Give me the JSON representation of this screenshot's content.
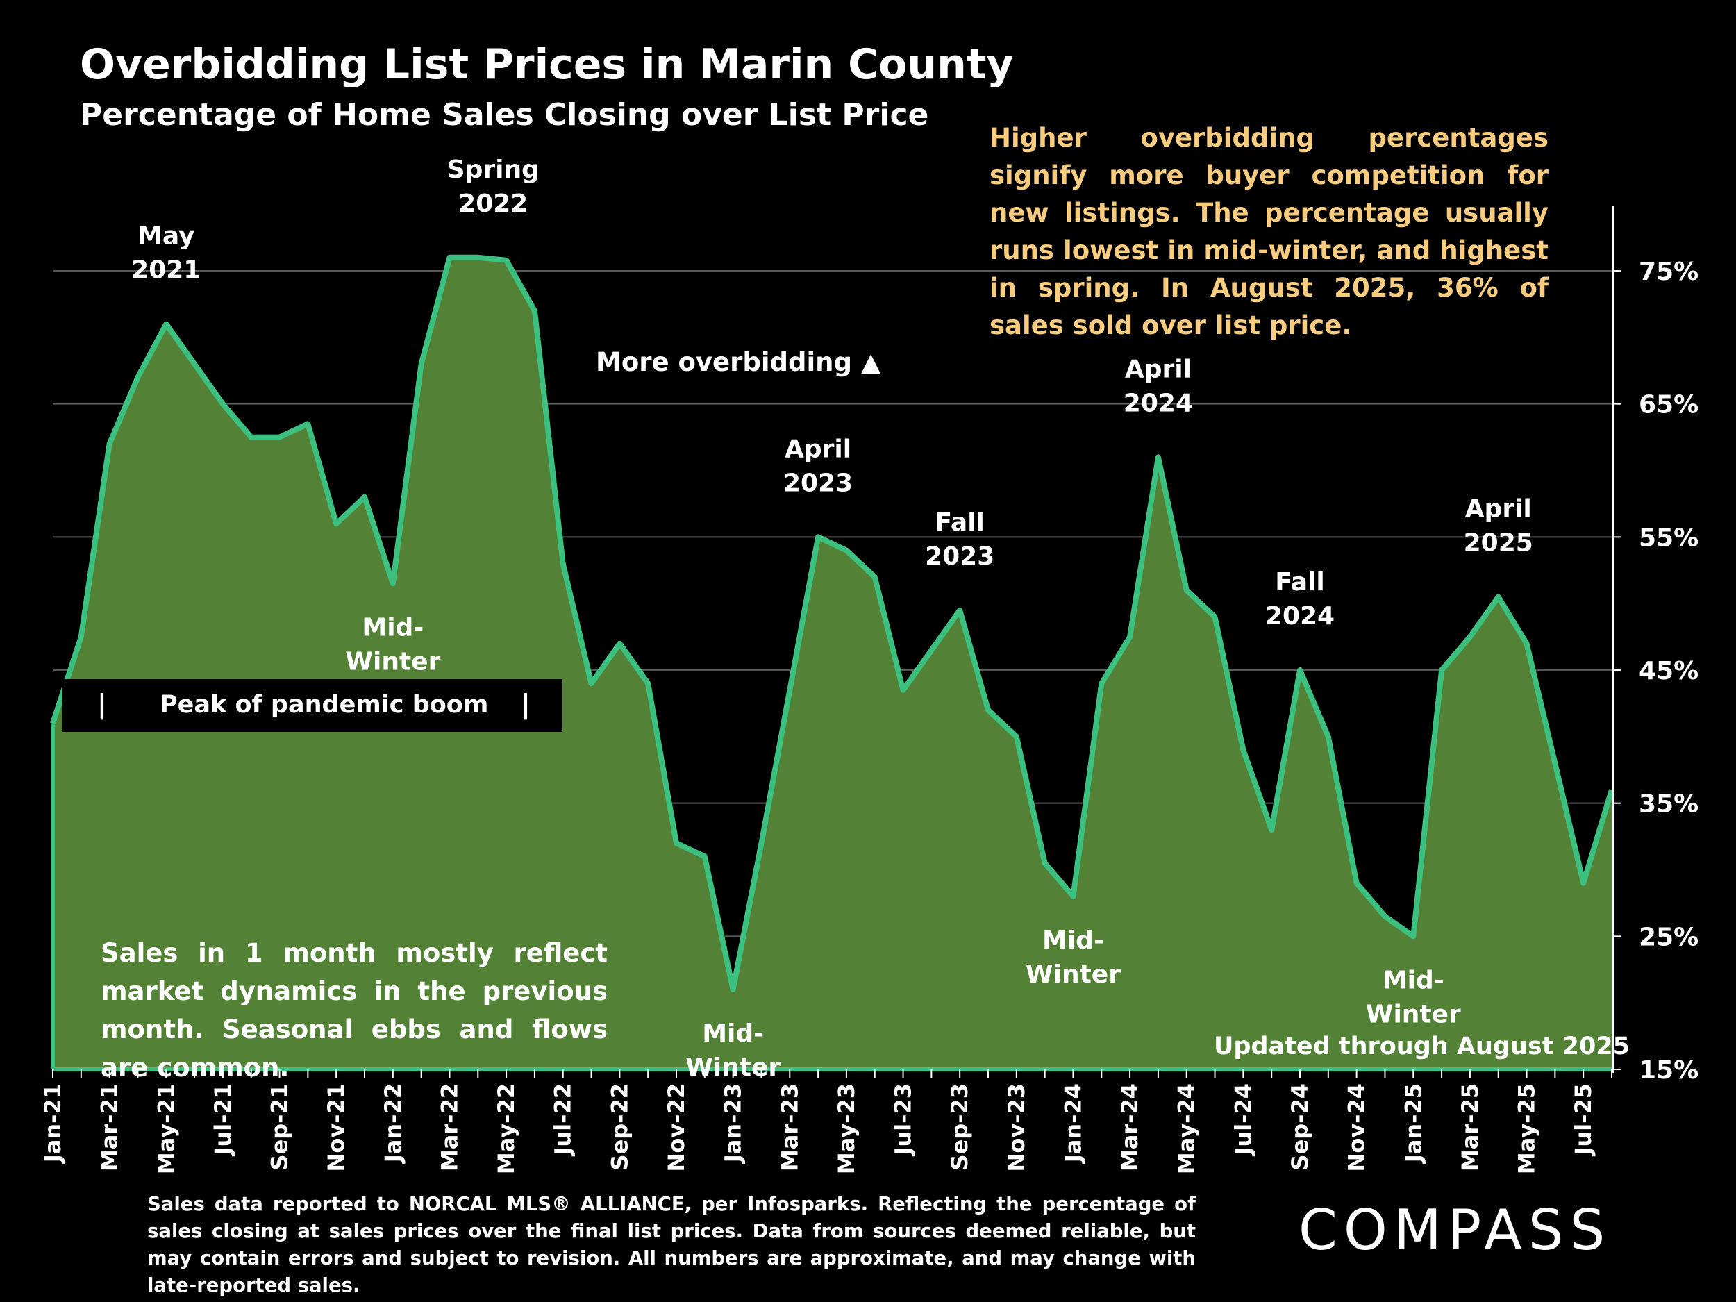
{
  "title": "Overbidding List Prices in Marin County",
  "subtitle": "Percentage of Home Sales Closing over List Price",
  "note_right": "Higher overbidding percentages signify more buyer competition for new listings. The percentage usually runs lowest in mid-winter, and highest in spring. In August 2025, 36% of sales sold over list price.",
  "note_left": "Sales in 1 month mostly reflect market dynamics in the previous month. Seasonal ebbs and flows are common.",
  "more_overbidding": "More overbidding ▲",
  "updated": "Updated through August 2025",
  "peak_label": "Peak of pandemic boom",
  "peak_bar": "|",
  "footer": "Sales data reported to NORCAL MLS® ALLIANCE, per Infosparks. Reflecting the percentage of sales closing at sales prices over the final list prices. Data from sources deemed reliable, but may contain errors and subject to revision. All numbers are approximate, and may change with late-reported sales.",
  "logo": "COMPASS",
  "colors": {
    "line": "#3cc07f",
    "fill": "#538135",
    "grid": "#595959",
    "note": "#f7cc7f"
  },
  "chart_data": {
    "type": "area",
    "ylim": [
      15,
      80
    ],
    "yticks": [
      15,
      25,
      35,
      45,
      55,
      65,
      75
    ],
    "ytick_labels": [
      "15%",
      "25%",
      "35%",
      "45%",
      "55%",
      "65%",
      "75%"
    ],
    "grid": true,
    "y_axis_position": "right",
    "x": [
      "Jan-21",
      "Feb-21",
      "Mar-21",
      "Apr-21",
      "May-21",
      "Jun-21",
      "Jul-21",
      "Aug-21",
      "Sep-21",
      "Oct-21",
      "Nov-21",
      "Dec-21",
      "Jan-22",
      "Feb-22",
      "Mar-22",
      "Apr-22",
      "May-22",
      "Jun-22",
      "Jul-22",
      "Aug-22",
      "Sep-22",
      "Oct-22",
      "Nov-22",
      "Dec-22",
      "Jan-23",
      "Feb-23",
      "Mar-23",
      "Apr-23",
      "May-23",
      "Jun-23",
      "Jul-23",
      "Aug-23",
      "Sep-23",
      "Oct-23",
      "Nov-23",
      "Dec-23",
      "Jan-24",
      "Feb-24",
      "Mar-24",
      "Apr-24",
      "May-24",
      "Jun-24",
      "Jul-24",
      "Aug-24",
      "Sep-24",
      "Oct-24",
      "Nov-24",
      "Dec-24",
      "Jan-25",
      "Feb-25",
      "Mar-25",
      "Apr-25",
      "May-25",
      "Jun-25",
      "Jul-25",
      "Aug-25"
    ],
    "xtick_labels": [
      "Jan-21",
      "Mar-21",
      "May-21",
      "Jul-21",
      "Sep-21",
      "Nov-21",
      "Jan-22",
      "Mar-22",
      "May-22",
      "Jul-22",
      "Sep-22",
      "Nov-22",
      "Jan-23",
      "Mar-23",
      "May-23",
      "Jul-23",
      "Sep-23",
      "Nov-23",
      "Jan-24",
      "Mar-24",
      "May-24",
      "Jul-24",
      "Sep-24",
      "Nov-24",
      "Jan-25",
      "Mar-25",
      "May-25",
      "Jul-25"
    ],
    "values": [
      41,
      47.5,
      62,
      67,
      71,
      68,
      65,
      62.5,
      62.5,
      63.5,
      56,
      58,
      51.5,
      68,
      76,
      76,
      75.8,
      72,
      53,
      44,
      47,
      44,
      32,
      31,
      21,
      32,
      43.5,
      55,
      54,
      52,
      43.5,
      46.5,
      49.5,
      42,
      40,
      30.5,
      28,
      44,
      47.5,
      61,
      51,
      49,
      39,
      33,
      45,
      40,
      29,
      26.5,
      25,
      45,
      47.5,
      50.5,
      47,
      38,
      29,
      36
    ],
    "annotations": [
      {
        "text": [
          "May",
          "2021"
        ],
        "x": "May-21"
      },
      {
        "text": [
          "Spring",
          "2022"
        ],
        "x": "Apr-22"
      },
      {
        "text": [
          "Mid-",
          "Winter"
        ],
        "x": "Jan-22"
      },
      {
        "text": [
          "April",
          "2023"
        ],
        "x": "Apr-23"
      },
      {
        "text": [
          "Fall",
          "2023"
        ],
        "x": "Sep-23"
      },
      {
        "text": [
          "Mid-",
          "Winter"
        ],
        "x": "Jan-23"
      },
      {
        "text": [
          "April",
          "2024"
        ],
        "x": "Apr-24"
      },
      {
        "text": [
          "Mid-",
          "Winter"
        ],
        "x": "Jan-24"
      },
      {
        "text": [
          "Fall",
          "2024"
        ],
        "x": "Sep-24"
      },
      {
        "text": [
          "Mid-",
          "Winter"
        ],
        "x": "Jan-25"
      },
      {
        "text": [
          "April",
          "2025"
        ],
        "x": "Apr-25"
      }
    ]
  }
}
